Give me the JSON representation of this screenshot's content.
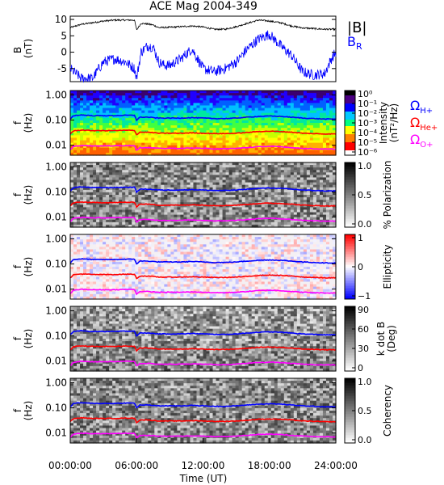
{
  "chart_data": {
    "type": "multi-panel",
    "title": "ACE Mag 2004-349",
    "xlabel": "Time (UT)",
    "x_ticks": [
      "00:00:00",
      "06:00:00",
      "12:00:00",
      "18:00:00",
      "24:00:00"
    ],
    "xlim": [
      0,
      24
    ],
    "panels": [
      {
        "type": "line",
        "ylabel": "B\n(nT)",
        "ylim": [
          -9,
          11
        ],
        "y_ticks": [
          10,
          5,
          0,
          -5
        ],
        "legend": [
          {
            "label": "|B|",
            "color": "#000000"
          },
          {
            "label": "B",
            "sub": "R",
            "color": "#0000ff"
          }
        ],
        "series": [
          {
            "name": "|B|",
            "color": "#000000",
            "x": [
              0,
              0.5,
              1,
              2,
              3,
              4,
              5,
              5.8,
              6.0,
              6.4,
              7,
              7.5,
              8,
              9,
              10,
              11,
              12,
              13,
              14,
              15,
              16,
              17,
              18,
              19,
              20,
              21,
              22,
              23,
              24
            ],
            "values": [
              7.5,
              8,
              8.5,
              9,
              9.5,
              9.8,
              9.8,
              9.8,
              6.8,
              8.8,
              8.6,
              8.3,
              7.5,
              7.6,
              7.8,
              8.0,
              7.7,
              7.0,
              7.0,
              7.8,
              8.8,
              9.8,
              9.5,
              9.0,
              8.0,
              7.4,
              7.2,
              7.0,
              7.0
            ]
          },
          {
            "name": "B",
            "color": "#0000ff",
            "x": [
              0,
              0.5,
              1,
              2,
              3,
              4,
              5,
              5.8,
              6.0,
              6.4,
              7,
              7.5,
              8,
              8.5,
              9,
              10,
              11,
              12,
              13,
              14,
              15,
              16,
              17,
              18,
              19,
              20,
              21,
              22,
              23,
              23.6,
              24
            ],
            "values": [
              -5,
              -6.5,
              -8,
              -8,
              -3,
              -2,
              -3,
              -5,
              -8,
              0,
              2,
              1.5,
              -3,
              -4,
              -4,
              -2,
              1,
              -5,
              -6,
              -5,
              -3,
              1,
              4,
              5.5,
              2,
              -1,
              -6,
              -7,
              -6.5,
              -2,
              0
            ]
          }
        ]
      },
      {
        "type": "heatmap",
        "ylabel": "f\n(Hz)",
        "y_ticks": [
          "1.00",
          "0.10",
          "0.01"
        ],
        "colorbar_label": "Intensity\n(nT²/Hz)",
        "colorbar_ticks": [
          "10⁰",
          "10⁻¹",
          "10⁻²",
          "10⁻³",
          "10⁻⁴",
          "10⁻⁵",
          "10⁻⁶"
        ],
        "colorbar_colors": [
          "#000000",
          "#4b0082",
          "#0000ff",
          "#00c8ff",
          "#00ff80",
          "#ffff00",
          "#ff8000",
          "#ff0000",
          "#ffffff"
        ],
        "gyro_labels": [
          {
            "label": "Ω",
            "sub": "H+",
            "color": "#0000ff"
          },
          {
            "label": "Ω",
            "sub": "He+",
            "color": "#ff0000"
          },
          {
            "label": "Ω",
            "sub": "O+",
            "color": "#ff00ff"
          }
        ]
      },
      {
        "type": "heatmap",
        "ylabel": "f\n(Hz)",
        "y_ticks": [
          "1.00",
          "0.10",
          "0.01"
        ],
        "colorbar_label": "% Polarization",
        "colorbar_ticks": [
          "1.0",
          "0.5",
          "0.0"
        ]
      },
      {
        "type": "heatmap",
        "ylabel": "f\n(Hz)",
        "y_ticks": [
          "1.00",
          "0.10",
          "0.01"
        ],
        "colorbar_label": "Ellipticity",
        "colorbar_ticks": [
          "1",
          "0",
          "−1"
        ]
      },
      {
        "type": "heatmap",
        "ylabel": "f\n(Hz)",
        "y_ticks": [
          "1.00",
          "0.10",
          "0.01"
        ],
        "colorbar_label": "k dot B\n(Deg)",
        "colorbar_ticks": [
          "90",
          "60",
          "30",
          "0"
        ]
      },
      {
        "type": "heatmap",
        "ylabel": "f\n(Hz)",
        "y_ticks": [
          "1.00",
          "0.10",
          "0.01"
        ],
        "colorbar_label": "Coherency",
        "colorbar_ticks": [
          "1.0",
          "0.5",
          "0.0"
        ]
      }
    ],
    "gyrofrequency_lines": {
      "x": [
        0,
        0.3,
        1,
        2,
        3,
        4,
        5,
        5.8,
        6.0,
        6.3,
        7,
        8,
        9,
        10,
        11,
        12,
        13,
        14,
        15,
        16,
        17,
        18,
        19,
        20,
        21,
        22,
        23,
        24
      ],
      "H+": [
        0.11,
        0.15,
        0.16,
        0.15,
        0.15,
        0.15,
        0.155,
        0.155,
        0.1,
        0.13,
        0.13,
        0.12,
        0.12,
        0.12,
        0.125,
        0.12,
        0.115,
        0.115,
        0.12,
        0.13,
        0.14,
        0.145,
        0.14,
        0.13,
        0.12,
        0.115,
        0.11,
        0.11
      ],
      "He+": [
        0.028,
        0.037,
        0.04,
        0.038,
        0.038,
        0.038,
        0.039,
        0.039,
        0.026,
        0.033,
        0.033,
        0.03,
        0.03,
        0.03,
        0.031,
        0.03,
        0.029,
        0.029,
        0.03,
        0.032,
        0.035,
        0.036,
        0.035,
        0.033,
        0.03,
        0.029,
        0.028,
        0.028
      ],
      "O+": [
        0.0065,
        0.009,
        0.0098,
        0.0094,
        0.0094,
        0.0094,
        0.0097,
        0.0097,
        0.0064,
        0.008,
        0.008,
        0.0075,
        0.0075,
        0.0075,
        0.0077,
        0.0075,
        0.0072,
        0.0072,
        0.0075,
        0.008,
        0.0087,
        0.009,
        0.0087,
        0.008,
        0.0075,
        0.0072,
        0.007,
        0.007
      ],
      "colors": {
        "H+": "#0000ff",
        "He+": "#ff0000",
        "O+": "#ff00ff"
      }
    },
    "freq_range_hz": [
      0.004,
      1.5
    ]
  }
}
